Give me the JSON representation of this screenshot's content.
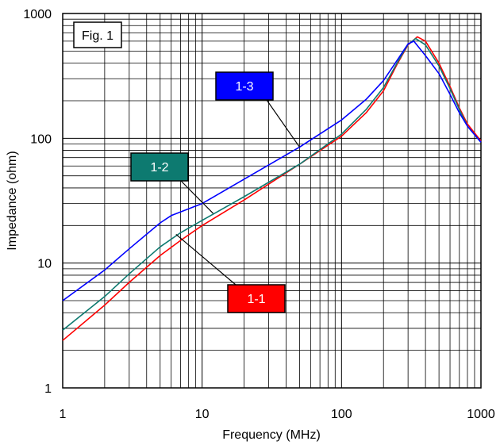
{
  "chart_data": {
    "type": "line",
    "title": "",
    "figure_label": "Fig. 1",
    "xlabel": "Frequency (MHz)",
    "ylabel": "Impedance (ohm)",
    "xscale": "log",
    "yscale": "log",
    "xlim": [
      1,
      1000
    ],
    "ylim": [
      1,
      1000
    ],
    "x_tick_labels": [
      "1",
      "10",
      "100",
      "1000"
    ],
    "y_tick_labels": [
      "1",
      "10",
      "100",
      "1000"
    ],
    "grid": true,
    "series": [
      {
        "name": "1-1",
        "color": "#ff0000",
        "x": [
          1,
          2,
          3,
          5,
          7,
          10,
          20,
          50,
          100,
          150,
          200,
          250,
          300,
          350,
          400,
          500,
          600,
          700,
          800,
          1000
        ],
        "y": [
          2.4,
          4.6,
          7.0,
          11.5,
          15.2,
          20,
          32,
          62,
          104,
          160,
          240,
          390,
          560,
          650,
          600,
          400,
          260,
          175,
          130,
          95
        ]
      },
      {
        "name": "1-2",
        "color": "#0d7a70",
        "x": [
          1,
          2,
          3,
          5,
          7,
          10,
          20,
          50,
          100,
          150,
          200,
          250,
          300,
          340,
          400,
          500,
          600,
          700,
          800,
          1000
        ],
        "y": [
          2.9,
          5.4,
          8.2,
          13.5,
          17.5,
          22,
          34,
          62,
          108,
          170,
          255,
          400,
          565,
          630,
          560,
          380,
          250,
          170,
          125,
          93
        ]
      },
      {
        "name": "1-3",
        "color": "#0000ff",
        "x": [
          1,
          2,
          3,
          5,
          6,
          10,
          20,
          50,
          100,
          150,
          200,
          250,
          300,
          330,
          400,
          500,
          600,
          700,
          800,
          1000
        ],
        "y": [
          5.0,
          8.8,
          13,
          21,
          24,
          30,
          47,
          85,
          140,
          205,
          290,
          420,
          570,
          600,
          460,
          330,
          225,
          160,
          125,
          93
        ]
      }
    ],
    "callouts": [
      "1-1",
      "1-2",
      "1-3"
    ]
  }
}
